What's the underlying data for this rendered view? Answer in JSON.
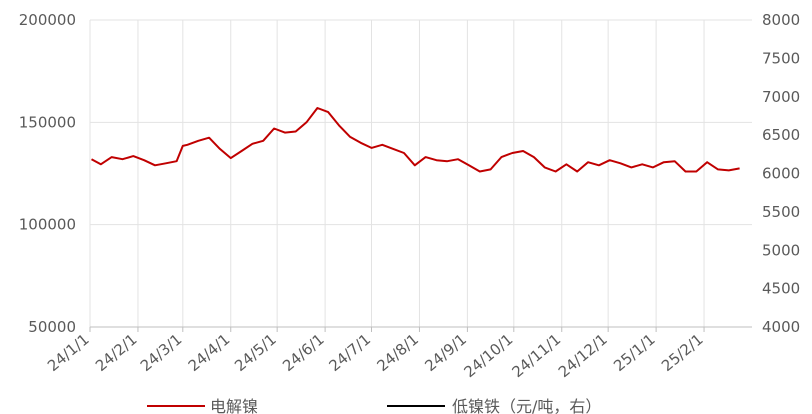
{
  "chart_data": {
    "type": "line",
    "title": "",
    "xlabel": "",
    "ylabel": "",
    "y2label": "",
    "ylim": [
      50000,
      200000
    ],
    "y2lim": [
      4000,
      8000
    ],
    "yticks": [
      "200000",
      "150000",
      "100000",
      "50000"
    ],
    "y2ticks": [
      "8000",
      "7500",
      "7000",
      "6500",
      "6000",
      "5500",
      "5000",
      "4500",
      "4000"
    ],
    "x_tick_labels": [
      "24/1/1",
      "24/2/1",
      "24/3/1",
      "24/4/1",
      "24/5/1",
      "24/6/1",
      "24/7/1",
      "24/8/1",
      "24/9/1",
      "24/10/1",
      "24/11/1",
      "24/12/1",
      "25/1/1",
      "25/2/1"
    ],
    "grid": true,
    "legend_position": "bottom",
    "series": [
      {
        "name": "电解镍",
        "axis": "left",
        "color": "#c00000",
        "x": [
          "24/1/2",
          "24/1/8",
          "24/1/15",
          "24/1/22",
          "24/1/29",
          "24/2/5",
          "24/2/12",
          "24/2/19",
          "24/2/26",
          "24/3/1",
          "24/3/4",
          "24/3/11",
          "24/3/18",
          "24/3/25",
          "24/4/1",
          "24/4/8",
          "24/4/15",
          "24/4/22",
          "24/4/29",
          "24/5/6",
          "24/5/13",
          "24/5/20",
          "24/5/27",
          "24/6/3",
          "24/6/10",
          "24/6/17",
          "24/6/24",
          "24/7/1",
          "24/7/8",
          "24/7/15",
          "24/7/22",
          "24/7/29",
          "24/8/5",
          "24/8/12",
          "24/8/19",
          "24/8/26",
          "24/9/2",
          "24/9/9",
          "24/9/16",
          "24/9/23",
          "24/9/30",
          "24/10/7",
          "24/10/14",
          "24/10/21",
          "24/10/28",
          "24/11/4",
          "24/11/11",
          "24/11/18",
          "24/11/25",
          "24/12/2",
          "24/12/9",
          "24/12/16",
          "24/12/23",
          "24/12/30",
          "25/1/6",
          "25/1/13",
          "25/1/20",
          "25/1/27",
          "25/2/3",
          "25/2/10",
          "25/2/17",
          "25/2/24"
        ],
        "values": [
          132000,
          129500,
          133000,
          132000,
          133500,
          131500,
          129000,
          130000,
          131000,
          138500,
          139000,
          141000,
          142500,
          137000,
          132500,
          136000,
          139500,
          141000,
          147000,
          145000,
          145500,
          150000,
          157000,
          155000,
          148500,
          143000,
          140000,
          137500,
          139000,
          137000,
          135000,
          129000,
          133000,
          131500,
          131000,
          132000,
          129000,
          126000,
          127000,
          133000,
          135000,
          136000,
          133000,
          128000,
          126000,
          129500,
          126000,
          130500,
          129000,
          131500,
          130000,
          128000,
          129500,
          128000,
          130500,
          131000,
          126000,
          126000,
          130500,
          127000,
          126500,
          127500
        ]
      },
      {
        "name": "低镍铁（元/吨，右）",
        "axis": "right",
        "color": "#000000",
        "x": [],
        "values": []
      }
    ]
  }
}
